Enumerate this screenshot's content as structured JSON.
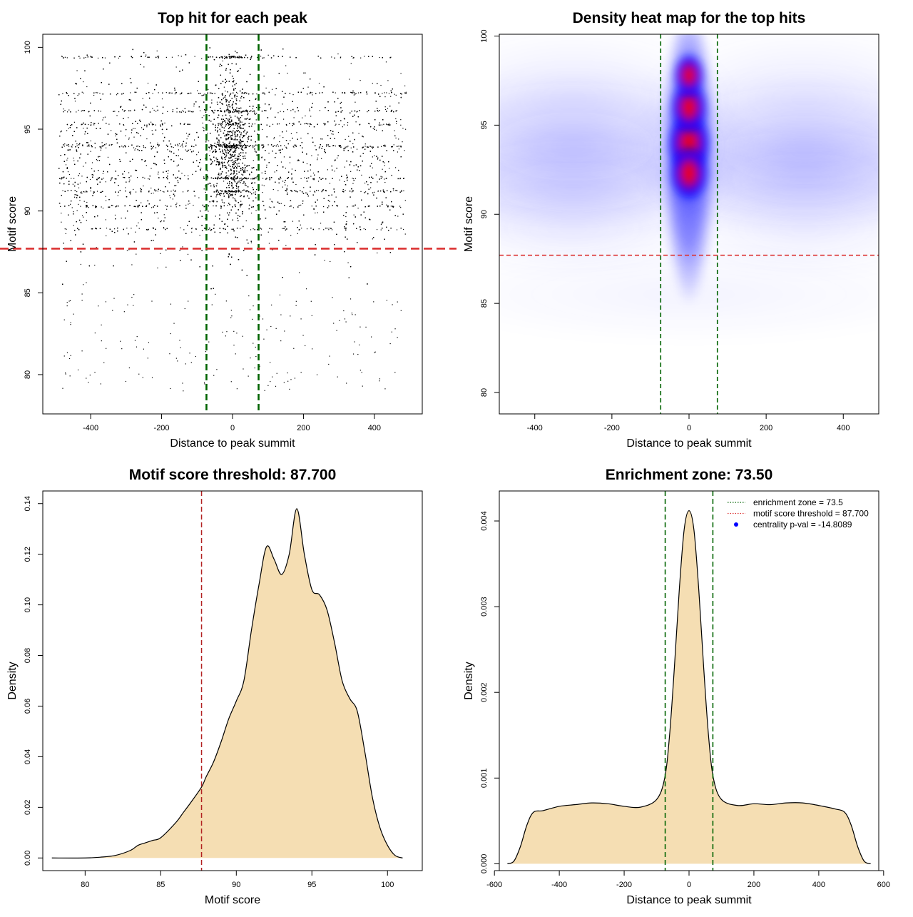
{
  "chart_data": [
    {
      "type": "scatter",
      "title": "Top hit for each peak",
      "xlabel": "Distance to peak summit",
      "ylabel": "Motif score",
      "xlim": [
        -535,
        535
      ],
      "ylim": [
        77.6,
        100.8
      ],
      "xticks": [
        -400,
        -200,
        0,
        200,
        400
      ],
      "yticks": [
        80,
        85,
        90,
        95,
        100
      ],
      "vlines": {
        "x": [
          -73.5,
          73.5
        ],
        "color": "#006400",
        "style": "dashed"
      },
      "hline": {
        "y": 87.7,
        "color": "#dc3232",
        "style": "dashed"
      },
      "point_color": "#000000",
      "note_points": "dense cloud of thousands of points, x uniform in [-490, 490], y mostly 84-100 peaking near 92-96, strong concentration near x = 0"
    },
    {
      "type": "heatmap",
      "title": "Density heat map for the top hits",
      "xlabel": "Distance to peak summit",
      "ylabel": "Motif score",
      "xlim": [
        -492,
        492
      ],
      "ylim": [
        78.8,
        100.1
      ],
      "xticks": [
        -400,
        -200,
        0,
        200,
        400
      ],
      "yticks": [
        80,
        85,
        90,
        95,
        100
      ],
      "vlines": {
        "x": [
          -73.5,
          73.5
        ],
        "color": "#006400",
        "style": "dashed"
      },
      "hline": {
        "y": 87.7,
        "color": "#dc3232",
        "style": "dashed"
      },
      "colors": {
        "low": "#ffffff",
        "mid": "#0000ff",
        "high": "#ff0000"
      },
      "hotspots": [
        {
          "x": 0,
          "y": 94,
          "density": 1.0
        },
        {
          "x": 0,
          "y": 92.3,
          "density": 0.9
        },
        {
          "x": 0,
          "y": 96,
          "density": 0.85
        },
        {
          "x": 0,
          "y": 97.8,
          "density": 0.7
        }
      ]
    },
    {
      "type": "area",
      "title": "Motif score threshold: 87.700",
      "xlabel": "Motif score",
      "ylabel": "Density",
      "xlim": [
        77.2,
        102.3
      ],
      "ylim": [
        -0.005,
        0.145
      ],
      "xticks": [
        80,
        85,
        90,
        95,
        100
      ],
      "yticks": [
        0.0,
        0.02,
        0.04,
        0.06,
        0.08,
        0.1,
        0.12,
        0.14
      ],
      "ytick_labels": [
        "0.00",
        "0.02",
        "0.04",
        "0.06",
        "0.08",
        "0.10",
        "0.12",
        "0.14"
      ],
      "vline": {
        "x": 87.7,
        "color": "#b22222",
        "style": "dashed"
      },
      "fill": "#f5deb3",
      "x": [
        77.8,
        80,
        81,
        82,
        83,
        83.5,
        84,
        84.5,
        85,
        86,
        86.5,
        87,
        87.7,
        88,
        88.5,
        89,
        89.5,
        90,
        90.5,
        91,
        91.5,
        92,
        92.5,
        93,
        93.5,
        94,
        94.5,
        95,
        95.5,
        96,
        96.5,
        97,
        97.5,
        98,
        98.5,
        99,
        99.5,
        100,
        100.5,
        101
      ],
      "y": [
        0.0,
        0.0,
        0.0003,
        0.001,
        0.003,
        0.005,
        0.006,
        0.007,
        0.008,
        0.014,
        0.018,
        0.022,
        0.028,
        0.032,
        0.038,
        0.046,
        0.055,
        0.062,
        0.07,
        0.09,
        0.108,
        0.123,
        0.118,
        0.112,
        0.12,
        0.138,
        0.12,
        0.106,
        0.104,
        0.098,
        0.085,
        0.07,
        0.063,
        0.058,
        0.042,
        0.024,
        0.012,
        0.005,
        0.001,
        0.0
      ]
    },
    {
      "type": "area",
      "title": "Enrichment zone: 73.50",
      "xlabel": "Distance to peak summit",
      "ylabel": "Density",
      "xlim": [
        -585,
        585
      ],
      "ylim": [
        -8e-05,
        0.00435
      ],
      "xticks": [
        -600,
        -400,
        -200,
        0,
        200,
        400,
        600
      ],
      "yticks": [
        0.0,
        0.001,
        0.002,
        0.003,
        0.004
      ],
      "ytick_labels": [
        "0.000",
        "0.001",
        "0.002",
        "0.003",
        "0.004"
      ],
      "vlines": {
        "x": [
          -73.5,
          73.5
        ],
        "color": "#006400",
        "style": "dashed"
      },
      "fill": "#f5deb3",
      "x": [
        -560,
        -540,
        -520,
        -500,
        -480,
        -450,
        -400,
        -350,
        -300,
        -250,
        -200,
        -150,
        -100,
        -75,
        -60,
        -45,
        -30,
        -15,
        0,
        15,
        30,
        45,
        60,
        75,
        100,
        150,
        200,
        250,
        300,
        350,
        400,
        450,
        480,
        500,
        520,
        540,
        560
      ],
      "y": [
        0.0,
        3e-05,
        0.0002,
        0.00045,
        0.0006,
        0.00062,
        0.00067,
        0.00069,
        0.00071,
        0.0007,
        0.00067,
        0.00066,
        0.00075,
        0.001,
        0.0015,
        0.0023,
        0.0032,
        0.0039,
        0.00412,
        0.0039,
        0.0032,
        0.0023,
        0.0015,
        0.001,
        0.00075,
        0.00068,
        0.0007,
        0.00069,
        0.00071,
        0.00071,
        0.00068,
        0.00064,
        0.0006,
        0.00045,
        0.0002,
        3e-05,
        0.0
      ],
      "legend": {
        "position": "top-right",
        "items": [
          {
            "label": "enrichment zone = 73.5",
            "color": "#006400",
            "style": "dotted-line"
          },
          {
            "label": "motif score threshold = 87.700",
            "color": "#dc3232",
            "style": "dotted-line"
          },
          {
            "label": "centrality p-val = -14.8089",
            "color": "#0000ff",
            "style": "point"
          }
        ]
      }
    }
  ]
}
